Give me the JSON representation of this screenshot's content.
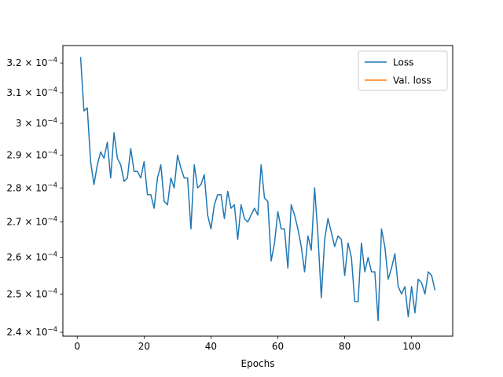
{
  "chart_data": {
    "type": "line",
    "xlabel": "Epochs",
    "ylabel": "",
    "title": "",
    "xlim": [
      -4.3,
      112.3
    ],
    "ylim": [
      0.000239,
      0.000326
    ],
    "y_scale": "log",
    "grid": false,
    "legend_placement": "top-right",
    "x_ticks": [
      0,
      20,
      40,
      60,
      80,
      100
    ],
    "x_tick_labels": [
      "0",
      "20",
      "40",
      "60",
      "80",
      "100"
    ],
    "y_ticks": [
      0.00024,
      0.00025,
      0.00026,
      0.00027,
      0.00028,
      0.00029,
      0.0003,
      0.00031,
      0.00032
    ],
    "y_tick_labels": [
      {
        "mantissa": "2.4",
        "base": "10",
        "exponent": "−4"
      },
      {
        "mantissa": "2.5",
        "base": "10",
        "exponent": "−4"
      },
      {
        "mantissa": "2.6",
        "base": "10",
        "exponent": "−4"
      },
      {
        "mantissa": "2.7",
        "base": "10",
        "exponent": "−4"
      },
      {
        "mantissa": "2.8",
        "base": "10",
        "exponent": "−4"
      },
      {
        "mantissa": "2.9",
        "base": "10",
        "exponent": "−4"
      },
      {
        "mantissa": "3",
        "base": "10",
        "exponent": "−4"
      },
      {
        "mantissa": "3.1",
        "base": "10",
        "exponent": "−4"
      },
      {
        "mantissa": "3.2",
        "base": "10",
        "exponent": "−4"
      }
    ],
    "series": [
      {
        "name": "Loss",
        "color": "#1f77b4",
        "x": [
          1,
          2,
          3,
          4,
          5,
          6,
          7,
          8,
          9,
          10,
          11,
          12,
          13,
          14,
          15,
          16,
          17,
          18,
          19,
          20,
          21,
          22,
          23,
          24,
          25,
          26,
          27,
          28,
          29,
          30,
          31,
          32,
          33,
          34,
          35,
          36,
          37,
          38,
          39,
          40,
          41,
          42,
          43,
          44,
          45,
          46,
          47,
          48,
          49,
          50,
          51,
          52,
          53,
          54,
          55,
          56,
          57,
          58,
          59,
          60,
          61,
          62,
          63,
          64,
          65,
          66,
          67,
          68,
          69,
          70,
          71,
          72,
          73,
          74,
          75,
          76,
          77,
          78,
          79,
          80,
          81,
          82,
          83,
          84,
          85,
          86,
          87,
          88,
          89,
          90,
          91,
          92,
          93,
          94,
          95,
          96,
          97,
          98,
          99,
          100,
          101,
          102,
          103,
          104,
          105,
          106,
          107
        ],
        "y": [
          0.000322,
          0.000304,
          0.000305,
          0.000288,
          0.000281,
          0.000287,
          0.000291,
          0.000289,
          0.000294,
          0.000283,
          0.000297,
          0.000289,
          0.000287,
          0.000282,
          0.000283,
          0.000292,
          0.000285,
          0.000285,
          0.000283,
          0.000288,
          0.000278,
          0.000278,
          0.000274,
          0.000283,
          0.000287,
          0.000276,
          0.000275,
          0.000283,
          0.00028,
          0.00029,
          0.000286,
          0.000283,
          0.000283,
          0.000268,
          0.000287,
          0.00028,
          0.000281,
          0.000284,
          0.000272,
          0.000268,
          0.000275,
          0.000278,
          0.000278,
          0.000271,
          0.000279,
          0.000274,
          0.000275,
          0.000265,
          0.000275,
          0.000271,
          0.00027,
          0.000272,
          0.000274,
          0.000272,
          0.000287,
          0.000277,
          0.000276,
          0.000259,
          0.000264,
          0.000273,
          0.000268,
          0.000268,
          0.000257,
          0.000275,
          0.000272,
          0.000268,
          0.000263,
          0.000256,
          0.000266,
          0.000262,
          0.00028,
          0.000266,
          0.000249,
          0.000265,
          0.000271,
          0.000267,
          0.000263,
          0.000266,
          0.000265,
          0.000255,
          0.000264,
          0.00026,
          0.000248,
          0.000248,
          0.000264,
          0.000256,
          0.00026,
          0.000256,
          0.000256,
          0.000243,
          0.000268,
          0.000263,
          0.000254,
          0.000257,
          0.000261,
          0.000252,
          0.00025,
          0.000252,
          0.000244,
          0.000252,
          0.000245,
          0.000254,
          0.000253,
          0.00025,
          0.000256,
          0.000255,
          0.000251
        ]
      },
      {
        "name": "Val. loss",
        "color": "#ff7f0e",
        "x": [],
        "y": []
      }
    ]
  }
}
